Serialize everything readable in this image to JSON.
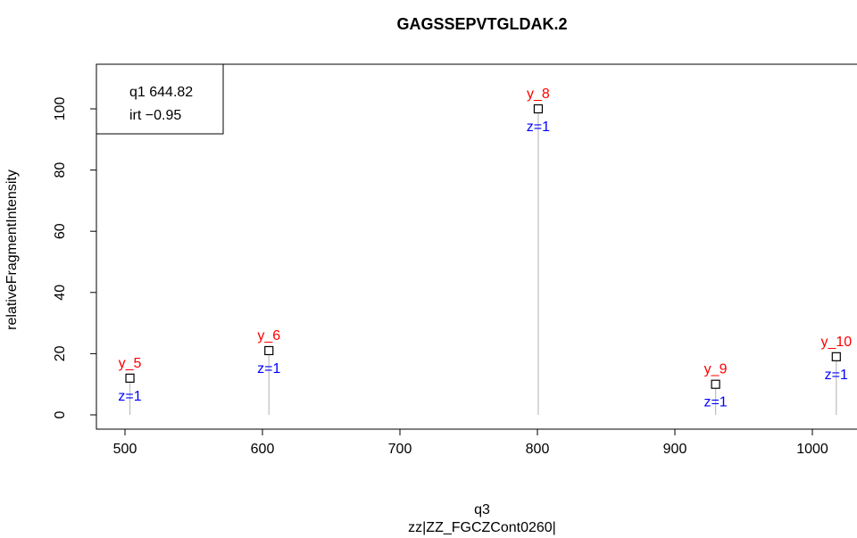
{
  "chart_data": {
    "type": "scatter",
    "title": "GAGSSEPVTGLDAK.2",
    "xlabel": "q3",
    "xlabel2": "zz|ZZ_FGCZCont0260|",
    "ylabel": "relativeFragmentIntensity",
    "xlim": [
      490,
      1020
    ],
    "ylim": [
      0,
      110
    ],
    "xticks": [
      "500",
      "600",
      "700",
      "800",
      "900",
      "1000"
    ],
    "yticks": [
      "0",
      "20",
      "40",
      "60",
      "80",
      "100"
    ],
    "grid": false,
    "legend": {
      "position": "top-left",
      "lines": [
        "q1 644.82",
        "irt −0.95"
      ]
    },
    "points": [
      {
        "x": 503.6,
        "y": 12,
        "ion": "y_5",
        "charge": "z=1"
      },
      {
        "x": 604.7,
        "y": 21,
        "ion": "y_6",
        "charge": "z=1"
      },
      {
        "x": 800.6,
        "y": 100,
        "ion": "y_8",
        "charge": "z=1"
      },
      {
        "x": 929.6,
        "y": 10,
        "ion": "y_9",
        "charge": "z=1"
      },
      {
        "x": 1017.4,
        "y": 19,
        "ion": "y_10",
        "charge": "z=1"
      }
    ],
    "colors": {
      "ion_label": "#ff0000",
      "charge_label": "#0000ff",
      "stem": "#bebebe",
      "marker": "#000000"
    }
  }
}
